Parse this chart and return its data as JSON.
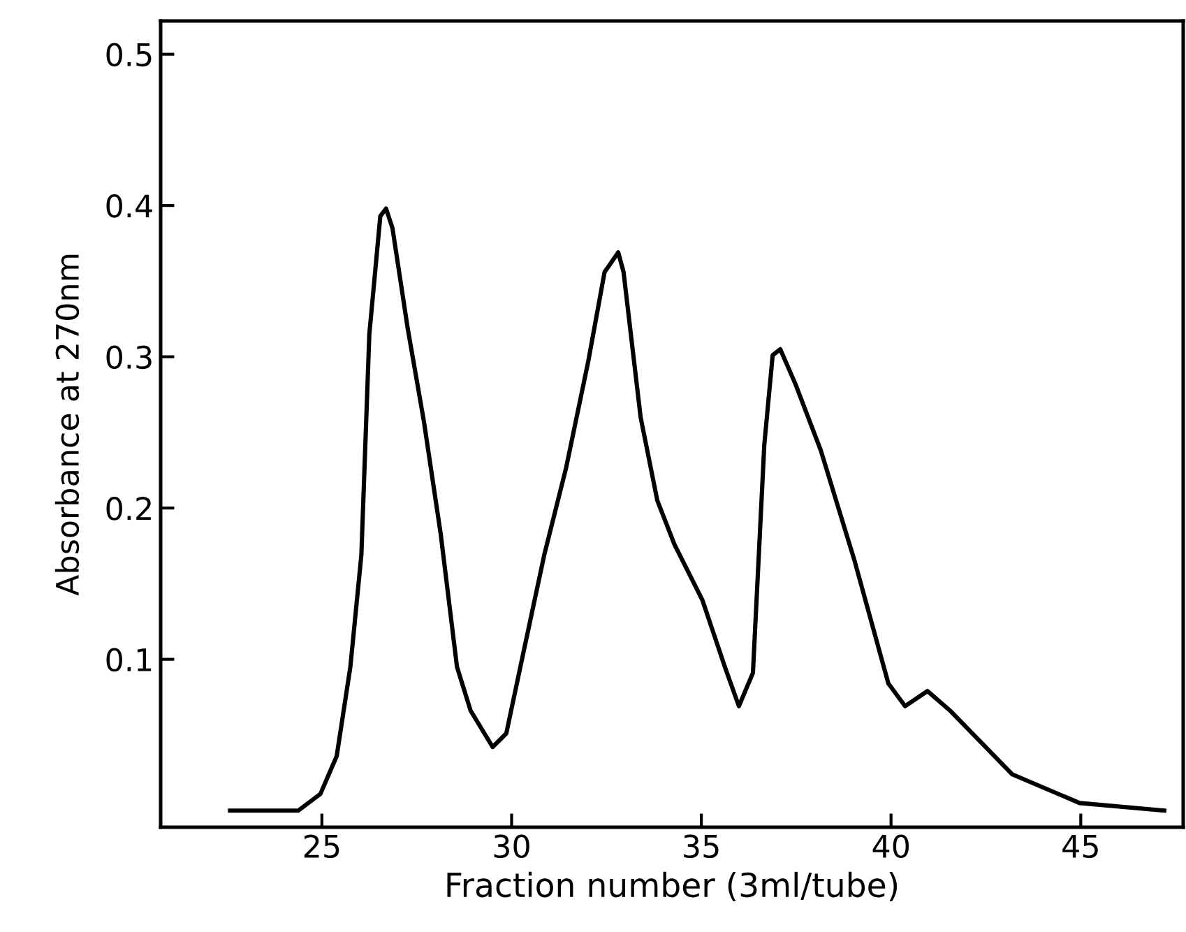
{
  "chart_data": {
    "type": "line",
    "xlabel": "Fraction number (3ml/tube)",
    "ylabel": "Absorbance at 270nm",
    "xlim": [
      20.75,
      47.7
    ],
    "ylim": [
      -0.011,
      0.522
    ],
    "xticks": [
      25,
      30,
      35,
      40,
      45
    ],
    "yticks": [
      0.1,
      0.2,
      0.3,
      0.4,
      0.5
    ],
    "grid": false,
    "marker": "none",
    "line_style": "solid",
    "series": [
      {
        "color": "#000000",
        "x": [
          22.58,
          24.38,
          24.96,
          25.39,
          25.75,
          26.04,
          26.25,
          26.54,
          26.69,
          26.86,
          27.26,
          27.69,
          28.13,
          28.56,
          28.92,
          29.5,
          29.86,
          30.29,
          30.86,
          31.44,
          32.02,
          32.45,
          32.81,
          32.95,
          33.4,
          33.84,
          34.29,
          35.03,
          35.62,
          35.99,
          36.36,
          36.66,
          36.88,
          37.08,
          37.48,
          38.15,
          39.04,
          39.93,
          40.37,
          40.96,
          41.56,
          43.19,
          44.97,
          47.2
        ],
        "values": [
          0.0,
          0.0,
          0.011,
          0.036,
          0.095,
          0.169,
          0.315,
          0.393,
          0.398,
          0.385,
          0.319,
          0.257,
          0.183,
          0.095,
          0.066,
          0.042,
          0.051,
          0.102,
          0.169,
          0.227,
          0.297,
          0.356,
          0.369,
          0.356,
          0.26,
          0.205,
          0.176,
          0.139,
          0.095,
          0.069,
          0.091,
          0.242,
          0.301,
          0.305,
          0.282,
          0.238,
          0.165,
          0.084,
          0.069,
          0.079,
          0.066,
          0.024,
          0.005,
          0.0
        ]
      }
    ]
  }
}
